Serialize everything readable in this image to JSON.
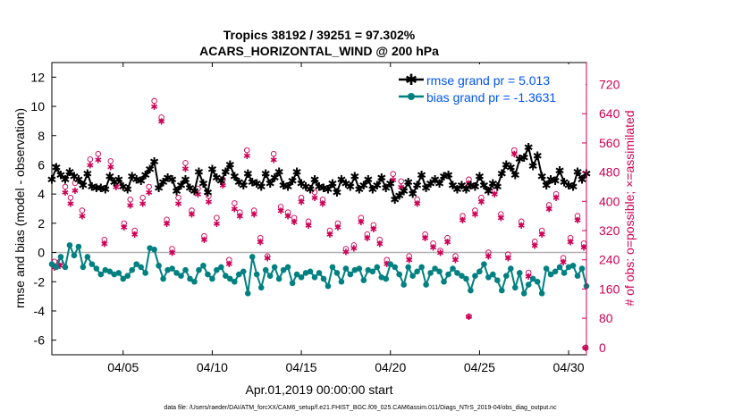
{
  "chart_data": {
    "type": "line",
    "title": "Tropics 38192 / 39251 = 97.302%",
    "subtitle": "ACARS_HORIZONTAL_WIND @ 200 hPa",
    "xlabel": "Apr.01,2019 00:00:00 start",
    "ylabel_left": "rmse and bias (model - observation)",
    "ylabel_right": "# of obs: o=possible; ×=assimilated",
    "footnote": "data file: /Users/raeder/DAI/ATM_forcXX/CAM6_setup/f.e21.FHIST_BGC.f09_025.CAM6assim.011/Diags_NTrS_2019-04/obs_diag_output.nc",
    "xlim": [
      1.0,
      31.0
    ],
    "ylim_left": [
      -7,
      13
    ],
    "ylim_right": [
      -20,
      780
    ],
    "x_ticks": [
      5,
      10,
      15,
      20,
      25,
      30
    ],
    "x_tick_labels": [
      "04/05",
      "04/10",
      "04/15",
      "04/20",
      "04/25",
      "04/30"
    ],
    "y_ticks_left": [
      -6,
      -4,
      -2,
      0,
      2,
      4,
      6,
      8,
      10,
      12
    ],
    "y_tick_labels_left": [
      "-6",
      "-4",
      "-2",
      "0",
      "2",
      "4",
      "6",
      "8",
      "10",
      "12"
    ],
    "y_ticks_right": [
      0,
      80,
      160,
      240,
      320,
      400,
      480,
      560,
      640,
      720
    ],
    "y_tick_labels_right": [
      "0",
      "80",
      "160",
      "240",
      "320",
      "400",
      "480",
      "560",
      "640",
      "720"
    ],
    "legend": [
      {
        "name": "rmse grand pr = 5.013",
        "color": "#000000",
        "marker": "star"
      },
      {
        "name": "bias grand pr = -1.3631",
        "color": "#008080",
        "marker": "circle"
      }
    ],
    "colors": {
      "rmse": "#000000",
      "bias": "#008080",
      "obs": "#cc0055",
      "legend_text": "#0055ee",
      "zero_line": "#b0b0b0"
    },
    "x": [
      1.0,
      1.25,
      1.5,
      1.75,
      2.0,
      2.25,
      2.5,
      2.75,
      3.0,
      3.25,
      3.5,
      3.75,
      4.0,
      4.25,
      4.5,
      4.75,
      5.0,
      5.25,
      5.5,
      5.75,
      6.0,
      6.25,
      6.5,
      6.75,
      7.0,
      7.25,
      7.5,
      7.75,
      8.0,
      8.25,
      8.5,
      8.75,
      9.0,
      9.25,
      9.5,
      9.75,
      10.0,
      10.25,
      10.5,
      10.75,
      11.0,
      11.25,
      11.5,
      11.75,
      12.0,
      12.25,
      12.5,
      12.75,
      13.0,
      13.25,
      13.5,
      13.75,
      14.0,
      14.25,
      14.5,
      14.75,
      15.0,
      15.25,
      15.5,
      15.75,
      16.0,
      16.25,
      16.5,
      16.75,
      17.0,
      17.25,
      17.5,
      17.75,
      18.0,
      18.25,
      18.5,
      18.75,
      19.0,
      19.25,
      19.5,
      19.75,
      20.0,
      20.25,
      20.5,
      20.75,
      21.0,
      21.25,
      21.5,
      21.75,
      22.0,
      22.25,
      22.5,
      22.75,
      23.0,
      23.25,
      23.5,
      23.75,
      24.0,
      24.25,
      24.5,
      24.75,
      25.0,
      25.25,
      25.5,
      25.75,
      26.0,
      26.25,
      26.5,
      26.75,
      27.0,
      27.25,
      27.5,
      27.75,
      28.0,
      28.25,
      28.5,
      28.75,
      29.0,
      29.25,
      29.5,
      29.75,
      30.0,
      30.25,
      30.5,
      30.75,
      31.0
    ],
    "series": [
      {
        "name": "rmse",
        "axis": "left",
        "values": [
          5.0,
          5.8,
          5.3,
          5.0,
          5.5,
          5.2,
          5.0,
          4.6,
          5.4,
          4.5,
          4.4,
          4.4,
          4.3,
          5.2,
          4.8,
          5.0,
          4.5,
          4.3,
          5.2,
          5.0,
          4.9,
          5.3,
          5.7,
          6.2,
          4.4,
          4.8,
          5.1,
          5.0,
          4.2,
          4.6,
          5.0,
          4.4,
          4.2,
          5.5,
          4.7,
          4.1,
          5.7,
          5.1,
          4.9,
          5.5,
          6.0,
          5.2,
          4.8,
          4.6,
          5.4,
          4.8,
          4.7,
          4.5,
          5.4,
          4.7,
          5.1,
          5.5,
          4.6,
          4.5,
          4.9,
          5.5,
          4.7,
          4.5,
          4.3,
          5.0,
          4.5,
          4.4,
          4.3,
          4.7,
          4.1,
          5.0,
          4.7,
          4.5,
          5.2,
          4.3,
          4.6,
          5.0,
          4.3,
          4.6,
          5.1,
          4.4,
          4.7,
          3.6,
          3.9,
          4.2,
          4.8,
          4.0,
          4.6,
          5.3,
          4.4,
          4.7,
          5.0,
          4.7,
          5.2,
          5.3,
          4.6,
          4.3,
          4.6,
          4.3,
          4.6,
          4.5,
          5.2,
          4.6,
          4.2,
          4.7,
          4.5,
          5.4,
          6.0,
          5.8,
          5.3,
          6.4,
          6.5,
          7.2,
          5.9,
          6.6,
          5.2,
          4.6,
          5.0,
          4.9,
          5.6,
          4.8,
          4.6,
          4.5,
          5.5,
          5.0,
          5.4
        ]
      },
      {
        "name": "bias",
        "axis": "left",
        "values": [
          -0.8,
          -1.0,
          -0.3,
          -1.0,
          0.5,
          -0.2,
          0.4,
          -1.0,
          -0.3,
          -0.8,
          -1.1,
          -1.5,
          -1.2,
          -1.3,
          -1.5,
          -1.4,
          -1.8,
          -1.6,
          -1.2,
          -0.8,
          -1.0,
          -1.4,
          0.3,
          0.2,
          -0.9,
          -1.8,
          -1.2,
          -1.1,
          -1.4,
          -1.6,
          -1.2,
          -1.8,
          -2.0,
          -1.2,
          -0.9,
          -1.5,
          -1.8,
          -1.2,
          -1.0,
          -1.6,
          -1.8,
          -2.0,
          -1.5,
          -1.3,
          -2.8,
          -0.3,
          -1.5,
          -2.4,
          -1.2,
          -1.6,
          -1.0,
          -1.8,
          -1.2,
          -1.0,
          -2.1,
          -1.5,
          -1.7,
          -1.4,
          -1.3,
          -1.7,
          -1.4,
          -1.8,
          -2.3,
          -1.0,
          -1.4,
          -2.0,
          -1.1,
          -1.5,
          -1.2,
          -1.1,
          -1.9,
          -1.2,
          -1.3,
          -1.0,
          -1.7,
          -1.8,
          -0.8,
          -1.0,
          -1.5,
          -2.2,
          -1.0,
          -1.6,
          -1.3,
          -1.0,
          -2.2,
          -1.4,
          -1.1,
          -1.3,
          -2.0,
          -1.5,
          -1.1,
          -1.4,
          -1.6,
          -1.8,
          -2.6,
          -1.6,
          -1.3,
          -0.8,
          -1.7,
          -1.5,
          -1.9,
          -2.6,
          -1.6,
          -1.1,
          -2.4,
          -1.4,
          -2.8,
          -2.2,
          -1.8,
          -2.0,
          -2.8,
          -1.1,
          -1.5,
          -1.3,
          -1.0,
          -1.4,
          -1.0,
          -0.9,
          -1.6,
          -1.1,
          -2.3
        ]
      }
    ],
    "obs_possible": {
      "axis": "right",
      "x": [
        1.15,
        1.45,
        1.75,
        2.05,
        2.3,
        2.7,
        3.15,
        3.6,
        3.95,
        4.3,
        4.6,
        5.05,
        5.4,
        5.65,
        6.1,
        6.45,
        6.75,
        7.15,
        7.45,
        7.75,
        8.1,
        8.5,
        8.85,
        9.2,
        9.55,
        9.8,
        10.25,
        10.6,
        10.95,
        11.25,
        11.55,
        11.95,
        12.35,
        12.7,
        13.1,
        13.45,
        13.85,
        14.25,
        14.6,
        15.0,
        15.4,
        15.75,
        16.2,
        16.6,
        17.05,
        17.5,
        17.95,
        18.35,
        18.7,
        19.05,
        19.4,
        19.8,
        20.15,
        20.6,
        21.05,
        21.5,
        21.95,
        22.4,
        22.8,
        23.2,
        23.65,
        24.05,
        24.4,
        24.75,
        25.1,
        25.5,
        25.85,
        26.2,
        26.6,
        26.95,
        27.35,
        27.75,
        28.1,
        28.5,
        28.9,
        29.3,
        29.7,
        30.1,
        30.5,
        30.85
      ],
      "values": [
        235,
        235,
        440,
        410,
        450,
        375,
        515,
        530,
        295,
        510,
        450,
        340,
        405,
        320,
        410,
        440,
        675,
        630,
        350,
        270,
        410,
        505,
        375,
        435,
        305,
        415,
        355,
        460,
        240,
        395,
        370,
        540,
        375,
        300,
        250,
        530,
        385,
        370,
        355,
        410,
        345,
        425,
        405,
        320,
        340,
        270,
        280,
        355,
        310,
        335,
        295,
        240,
        475,
        455,
        250,
        405,
        310,
        285,
        265,
        300,
        250,
        360,
        460,
        375,
        410,
        260,
        430,
        365,
        255,
        540,
        345,
        205,
        290,
        320,
        390,
        420,
        245,
        300,
        360,
        285
      ]
    },
    "obs_assimilated": {
      "axis": "right",
      "x": [
        1.15,
        1.45,
        1.75,
        2.05,
        2.3,
        2.7,
        3.15,
        3.6,
        3.95,
        4.3,
        4.6,
        5.05,
        5.4,
        5.65,
        6.1,
        6.45,
        6.75,
        7.15,
        7.45,
        7.75,
        8.1,
        8.5,
        8.85,
        9.2,
        9.55,
        9.8,
        10.25,
        10.6,
        10.95,
        11.25,
        11.55,
        11.95,
        12.35,
        12.7,
        13.1,
        13.45,
        13.85,
        14.25,
        14.6,
        15.0,
        15.4,
        15.75,
        16.2,
        16.6,
        17.05,
        17.5,
        17.95,
        18.35,
        18.7,
        19.05,
        19.4,
        19.8,
        20.15,
        20.6,
        21.05,
        21.5,
        21.95,
        22.4,
        22.8,
        23.2,
        23.65,
        24.05,
        24.4,
        24.75,
        25.1,
        25.5,
        25.85,
        26.2,
        26.6,
        26.95,
        27.35,
        27.75,
        28.1,
        28.5,
        28.9,
        29.3,
        29.7,
        30.1,
        30.5,
        30.85
      ],
      "values": [
        220,
        225,
        425,
        395,
        430,
        360,
        500,
        515,
        285,
        495,
        440,
        330,
        390,
        310,
        395,
        425,
        660,
        620,
        340,
        260,
        395,
        490,
        365,
        420,
        295,
        400,
        340,
        445,
        230,
        380,
        360,
        525,
        365,
        290,
        245,
        515,
        375,
        360,
        345,
        400,
        335,
        410,
        395,
        310,
        330,
        262,
        272,
        345,
        300,
        325,
        285,
        230,
        460,
        440,
        240,
        395,
        300,
        275,
        260,
        290,
        240,
        350,
        450,
        365,
        400,
        250,
        420,
        355,
        245,
        530,
        335,
        195,
        280,
        310,
        380,
        410,
        235,
        290,
        350,
        275
      ]
    },
    "obs_outliers": {
      "axis": "right",
      "x": [
        24.4,
        30.95
      ],
      "values": [
        85,
        0
      ]
    }
  }
}
